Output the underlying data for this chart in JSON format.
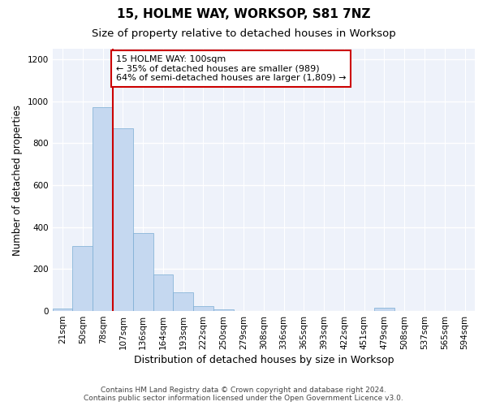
{
  "title1": "15, HOLME WAY, WORKSOP, S81 7NZ",
  "title2": "Size of property relative to detached houses in Worksop",
  "xlabel": "Distribution of detached houses by size in Worksop",
  "ylabel": "Number of detached properties",
  "footnote1": "Contains HM Land Registry data © Crown copyright and database right 2024.",
  "footnote2": "Contains public sector information licensed under the Open Government Licence v3.0.",
  "annotation_line1": "15 HOLME WAY: 100sqm",
  "annotation_line2": "← 35% of detached houses are smaller (989)",
  "annotation_line3": "64% of semi-detached houses are larger (1,809) →",
  "bar_color": "#c5d8f0",
  "bar_edge_color": "#7aadd4",
  "vline_color": "#cc0000",
  "annotation_box_color": "#cc0000",
  "background_color": "#eef2fa",
  "bin_labels": [
    "21sqm",
    "50sqm",
    "78sqm",
    "107sqm",
    "136sqm",
    "164sqm",
    "193sqm",
    "222sqm",
    "250sqm",
    "279sqm",
    "308sqm",
    "336sqm",
    "365sqm",
    "393sqm",
    "422sqm",
    "451sqm",
    "479sqm",
    "508sqm",
    "537sqm",
    "565sqm",
    "594sqm"
  ],
  "bar_values": [
    10,
    310,
    970,
    870,
    370,
    175,
    90,
    25,
    8,
    2,
    2,
    1,
    1,
    1,
    0,
    0,
    15,
    0,
    0,
    0,
    0
  ],
  "vline_x": 2.5,
  "ylim": [
    0,
    1250
  ],
  "yticks": [
    0,
    200,
    400,
    600,
    800,
    1000,
    1200
  ],
  "title1_fontsize": 11,
  "title2_fontsize": 9.5,
  "xlabel_fontsize": 9,
  "ylabel_fontsize": 8.5,
  "tick_fontsize": 7.5,
  "annotation_fontsize": 8,
  "footnote_fontsize": 6.5
}
